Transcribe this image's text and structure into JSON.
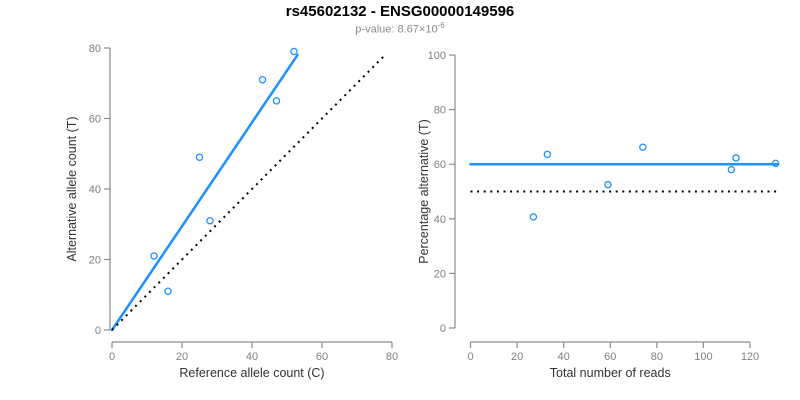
{
  "header": {
    "title": "rs45602132 - ENSG00000149596",
    "pvalue_prefix": "p-value: 8.67×10",
    "pvalue_exponent": "-6"
  },
  "colors": {
    "accent_blue": "#1E90FF",
    "line_black": "#000000",
    "axis_gray": "#8C8C8C",
    "tick_text_gray": "#7F7F7F",
    "axis_title_color": "#333333",
    "background": "#FFFFFF"
  },
  "chart_data": [
    {
      "type": "scatter",
      "name": "allele-counts-plot",
      "xlabel": "Reference allele count (C)",
      "ylabel": "Alternative allele count (T)",
      "xlim": [
        0,
        80
      ],
      "ylim": [
        0,
        80
      ],
      "xticks": [
        0,
        20,
        40,
        60,
        80
      ],
      "yticks": [
        0,
        20,
        40,
        60,
        80
      ],
      "grid": false,
      "marker": "open-circle",
      "marker_color": "#1E90FF",
      "points": [
        [
          12,
          21
        ],
        [
          16,
          11
        ],
        [
          25,
          49
        ],
        [
          28,
          31
        ],
        [
          43,
          71
        ],
        [
          47,
          65
        ],
        [
          52,
          79
        ]
      ],
      "lines": [
        {
          "name": "fit-line",
          "x1": 0,
          "y1": 0,
          "x2": 53,
          "y2": 78,
          "style": "solid",
          "color": "#1E90FF"
        },
        {
          "name": "identity-line",
          "x1": 0,
          "y1": 0,
          "x2": 78,
          "y2": 78,
          "style": "dotted",
          "color": "#000000"
        }
      ]
    },
    {
      "type": "scatter",
      "name": "percentage-plot",
      "xlabel": "Total number of reads",
      "ylabel": "Percentage alternative (T)",
      "xlim": [
        0,
        132
      ],
      "ylim": [
        0,
        100
      ],
      "xticks": [
        0,
        20,
        40,
        60,
        80,
        100,
        120
      ],
      "yticks": [
        0,
        20,
        40,
        60,
        80,
        100
      ],
      "grid": false,
      "marker": "open-circle",
      "marker_color": "#1E90FF",
      "points": [
        [
          27,
          40.7
        ],
        [
          33,
          63.6
        ],
        [
          59,
          52.5
        ],
        [
          74,
          66.2
        ],
        [
          112,
          58
        ],
        [
          114,
          62.3
        ],
        [
          131,
          60.3
        ]
      ],
      "lines": [
        {
          "name": "mean-line",
          "x1": 0,
          "y1": 60,
          "x2": 132,
          "y2": 60,
          "style": "solid",
          "color": "#1E90FF"
        },
        {
          "name": "reference-line",
          "x1": 0,
          "y1": 50,
          "x2": 132,
          "y2": 50,
          "style": "dotted",
          "color": "#000000"
        }
      ]
    }
  ]
}
